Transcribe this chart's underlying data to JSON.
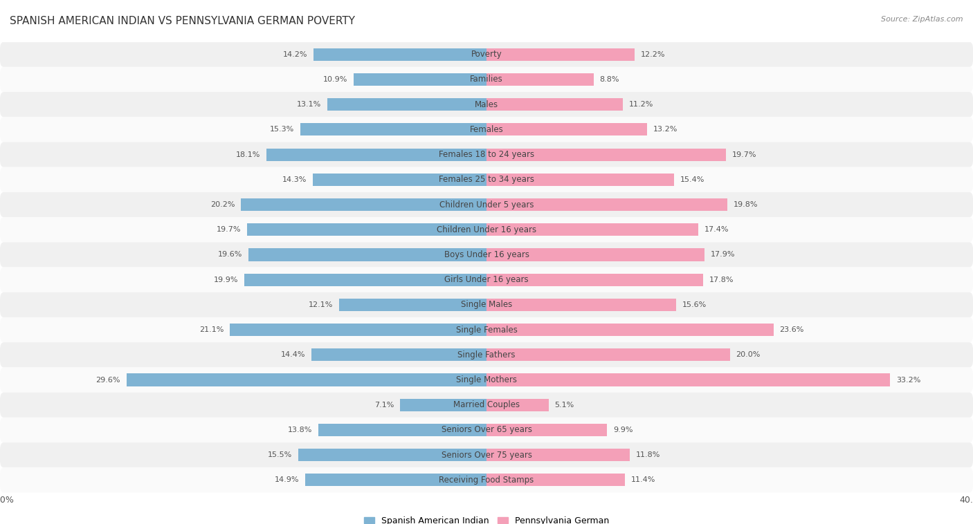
{
  "title": "SPANISH AMERICAN INDIAN VS PENNSYLVANIA GERMAN POVERTY",
  "source": "Source: ZipAtlas.com",
  "categories": [
    "Poverty",
    "Families",
    "Males",
    "Females",
    "Females 18 to 24 years",
    "Females 25 to 34 years",
    "Children Under 5 years",
    "Children Under 16 years",
    "Boys Under 16 years",
    "Girls Under 16 years",
    "Single Males",
    "Single Females",
    "Single Fathers",
    "Single Mothers",
    "Married Couples",
    "Seniors Over 65 years",
    "Seniors Over 75 years",
    "Receiving Food Stamps"
  ],
  "left_values": [
    14.2,
    10.9,
    13.1,
    15.3,
    18.1,
    14.3,
    20.2,
    19.7,
    19.6,
    19.9,
    12.1,
    21.1,
    14.4,
    29.6,
    7.1,
    13.8,
    15.5,
    14.9
  ],
  "right_values": [
    12.2,
    8.8,
    11.2,
    13.2,
    19.7,
    15.4,
    19.8,
    17.4,
    17.9,
    17.8,
    15.6,
    23.6,
    20.0,
    33.2,
    5.1,
    9.9,
    11.8,
    11.4
  ],
  "left_color": "#7fb3d3",
  "right_color": "#f4a0b8",
  "left_label": "Spanish American Indian",
  "right_label": "Pennsylvania German",
  "axis_max": 40.0,
  "page_bg": "#ffffff",
  "row_bg_odd": "#f0f0f0",
  "row_bg_even": "#fafafa",
  "title_fontsize": 11,
  "label_fontsize": 8.5,
  "value_fontsize": 8.0
}
